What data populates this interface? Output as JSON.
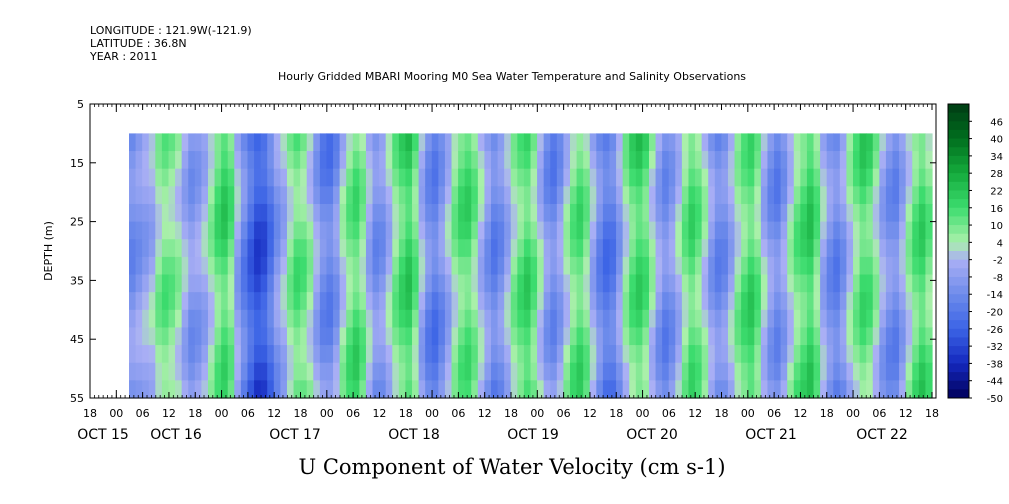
{
  "header": {
    "longitude": "LONGITUDE : 121.9W(-121.9)",
    "latitude": "LATITUDE : 36.8N",
    "year": "YEAR : 2011",
    "title": "Hourly Gridded MBARI Mooring M0 Sea Water Temperature and Salinity Observations"
  },
  "chart_data": {
    "type": "heatmap",
    "title": "Hourly Gridded MBARI Mooring M0 Sea Water Temperature and Salinity Observations",
    "xlabel": "U Component of Water Velocity (cm s-1)",
    "ylabel": "DEPTH (m)",
    "y_ticks": [
      "5",
      "15",
      "25",
      "35",
      "45",
      "55"
    ],
    "ylim": [
      55,
      5
    ],
    "x_hour_ticks": [
      "18",
      "00",
      "06",
      "12",
      "18",
      "00",
      "06",
      "12",
      "18",
      "00",
      "06",
      "12",
      "18",
      "00",
      "06",
      "12",
      "18",
      "00",
      "06",
      "12",
      "18",
      "00",
      "06",
      "12",
      "18",
      "00",
      "06",
      "12",
      "18",
      "00",
      "06",
      "12",
      "18"
    ],
    "x_date_labels": [
      "OCT 15",
      "OCT 16",
      "OCT 17",
      "OCT 18",
      "OCT 19",
      "OCT 20",
      "OCT 21",
      "OCT 22"
    ],
    "data_depth_range": [
      10,
      55
    ],
    "colorbar": {
      "labels": [
        "46",
        "40",
        "34",
        "28",
        "22",
        "16",
        "10",
        "4",
        "-2",
        "-8",
        "-14",
        "-20",
        "-26",
        "-32",
        "-38",
        "-44",
        "-50"
      ],
      "range": [
        -50,
        52
      ],
      "step": 3
    },
    "columns_u": [
      -12,
      -9,
      -6,
      -3,
      6,
      10,
      8,
      4,
      -4,
      -10,
      -8,
      -4,
      4,
      12,
      16,
      10,
      -6,
      -16,
      -24,
      -30,
      -28,
      -20,
      -10,
      -4,
      6,
      12,
      10,
      4,
      -6,
      -14,
      -16,
      -10,
      2,
      10,
      14,
      8,
      -4,
      -12,
      -10,
      -2,
      8,
      14,
      18,
      10,
      -4,
      -14,
      -18,
      -12,
      -4,
      6,
      12,
      14,
      8,
      -2,
      -10,
      -16,
      -12,
      -4,
      6,
      12,
      16,
      10,
      0,
      -10,
      -14,
      -8,
      2,
      10,
      14,
      8,
      -4,
      -14,
      -20,
      -18,
      -8,
      4,
      12,
      16,
      12,
      2,
      -8,
      -14,
      -10,
      -2,
      8,
      14,
      10,
      2,
      -8,
      -14,
      -12,
      -4,
      6,
      12,
      16,
      10,
      -2,
      -10,
      -14,
      -8,
      2,
      10,
      14,
      18,
      10,
      -4,
      -12,
      -16,
      -10,
      0,
      8,
      14,
      12,
      4,
      -6,
      -12,
      -14,
      -6,
      4,
      12,
      16,
      10
    ]
  }
}
